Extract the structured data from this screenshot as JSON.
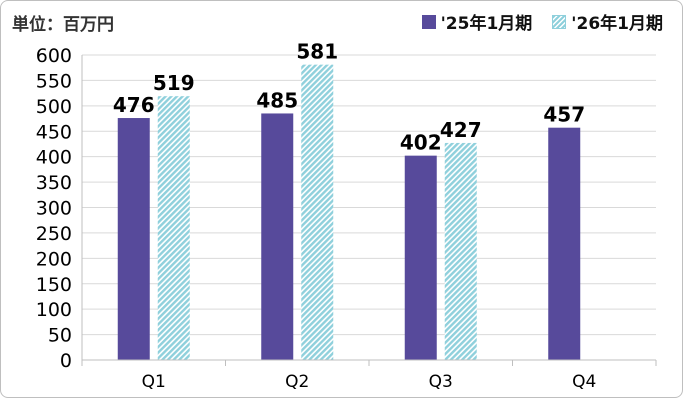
{
  "unit_label": "単位：百万円",
  "chart_data": {
    "type": "bar",
    "title": "",
    "xlabel": "",
    "ylabel": "",
    "ylim": [
      0,
      600
    ],
    "yticks": [
      0,
      50,
      100,
      150,
      200,
      250,
      300,
      350,
      400,
      450,
      500,
      550,
      600
    ],
    "grid": true,
    "legend_position": "top-right",
    "categories": [
      "Q1",
      "Q2",
      "Q3",
      "Q4"
    ],
    "series": [
      {
        "name": "'25年1月期",
        "values": [
          476,
          485,
          402,
          457
        ],
        "color": "#574a9b",
        "pattern": "solid"
      },
      {
        "name": "'26年1月期",
        "values": [
          519,
          581,
          427,
          null
        ],
        "color": "#8fd0dc",
        "pattern": "hatched"
      }
    ]
  }
}
